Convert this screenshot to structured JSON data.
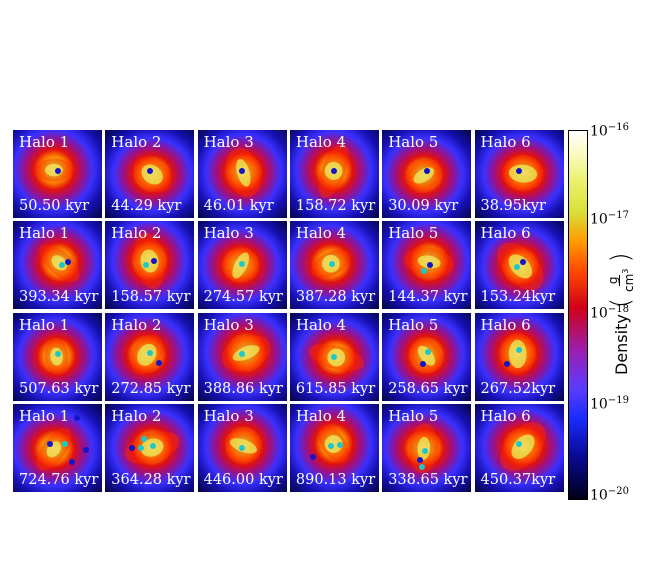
{
  "colorbar": {
    "label": "Density",
    "unit_num": "g",
    "unit_den": "cm",
    "unit_den_exp": "3",
    "ticks": [
      {
        "base": "10",
        "exp": "−16"
      },
      {
        "base": "10",
        "exp": "−17"
      },
      {
        "base": "10",
        "exp": "−18"
      },
      {
        "base": "10",
        "exp": "−19"
      },
      {
        "base": "10",
        "exp": "−20"
      }
    ]
  },
  "panels": [
    {
      "halo": "Halo 1",
      "time": "50.50 kyr",
      "dots": [
        [
          "blue",
          0.5,
          0.47
        ]
      ],
      "cores": 1
    },
    {
      "halo": "Halo 2",
      "time": "44.29 kyr",
      "dots": [
        [
          "blue",
          0.5,
          0.47
        ]
      ],
      "cores": 1
    },
    {
      "halo": "Halo 3",
      "time": "46.01 kyr",
      "dots": [
        [
          "blue",
          0.5,
          0.47
        ]
      ],
      "cores": 1
    },
    {
      "halo": "Halo 4",
      "time": "158.72 kyr",
      "dots": [
        [
          "blue",
          0.5,
          0.47
        ]
      ],
      "cores": 1
    },
    {
      "halo": "Halo 5",
      "time": "30.09 kyr",
      "dots": [
        [
          "blue",
          0.5,
          0.47
        ]
      ],
      "cores": 1
    },
    {
      "halo": "Halo 6",
      "time": "38.95kyr",
      "dots": [
        [
          "blue",
          0.5,
          0.47
        ]
      ],
      "cores": 1
    },
    {
      "halo": "Halo 1",
      "time": "393.34 kyr",
      "dots": [
        [
          "blue",
          0.62,
          0.46
        ],
        [
          "cyan",
          0.55,
          0.5
        ]
      ],
      "cores": 2
    },
    {
      "halo": "Halo 2",
      "time": "158.57 kyr",
      "dots": [
        [
          "blue",
          0.55,
          0.45
        ],
        [
          "cyan",
          0.46,
          0.5
        ]
      ],
      "cores": 2
    },
    {
      "halo": "Halo 3",
      "time": "274.57 kyr",
      "dots": [
        [
          "cyan",
          0.5,
          0.48
        ]
      ],
      "cores": 1
    },
    {
      "halo": "Halo 4",
      "time": "387.28 kyr",
      "dots": [
        [
          "cyan",
          0.47,
          0.48
        ]
      ],
      "cores": 1
    },
    {
      "halo": "Halo 5",
      "time": "144.37 kyr",
      "dots": [
        [
          "blue",
          0.54,
          0.5
        ],
        [
          "cyan",
          0.47,
          0.56
        ]
      ],
      "cores": 2
    },
    {
      "halo": "Halo 6",
      "time": "153.24kyr",
      "dots": [
        [
          "blue",
          0.55,
          0.46
        ],
        [
          "cyan",
          0.48,
          0.52
        ]
      ],
      "cores": 2
    },
    {
      "halo": "Halo 1",
      "time": "507.63 kyr",
      "dots": [
        [
          "cyan",
          0.5,
          0.47
        ]
      ],
      "cores": 1
    },
    {
      "halo": "Halo 2",
      "time": "272.85 kyr",
      "dots": [
        [
          "cyan",
          0.5,
          0.46
        ],
        [
          "blue",
          0.6,
          0.57
        ]
      ],
      "cores": 2
    },
    {
      "halo": "Halo 3",
      "time": "388.86 kyr",
      "dots": [
        [
          "cyan",
          0.5,
          0.47
        ]
      ],
      "cores": 1
    },
    {
      "halo": "Halo 4",
      "time": "615.85 kyr",
      "dots": [
        [
          "cyan",
          0.5,
          0.5
        ]
      ],
      "cores": 1
    },
    {
      "halo": "Halo 5",
      "time": "258.65 kyr",
      "dots": [
        [
          "cyan",
          0.52,
          0.45
        ],
        [
          "blue",
          0.46,
          0.58
        ]
      ],
      "cores": 2
    },
    {
      "halo": "Halo 6",
      "time": "267.52kyr",
      "dots": [
        [
          "cyan",
          0.5,
          0.42
        ],
        [
          "blue",
          0.37,
          0.58
        ]
      ],
      "cores": 2
    },
    {
      "halo": "Halo 1",
      "time": "724.76 kyr",
      "dots": [
        [
          "blue",
          0.72,
          0.16
        ],
        [
          "blue",
          0.42,
          0.46
        ],
        [
          "cyan",
          0.58,
          0.46
        ],
        [
          "blue",
          0.82,
          0.52
        ],
        [
          "blue",
          0.66,
          0.66
        ]
      ],
      "cores": 3
    },
    {
      "halo": "Halo 2",
      "time": "364.28 kyr",
      "dots": [
        [
          "blue",
          0.3,
          0.5
        ],
        [
          "cyan",
          0.4,
          0.5
        ],
        [
          "cyan",
          0.54,
          0.48
        ],
        [
          "cyan",
          0.44,
          0.4
        ]
      ],
      "cores": 2
    },
    {
      "halo": "Halo 3",
      "time": "446.00 kyr",
      "dots": [
        [
          "cyan",
          0.5,
          0.5
        ]
      ],
      "cores": 1
    },
    {
      "halo": "Halo 4",
      "time": "890.13 kyr",
      "dots": [
        [
          "blue",
          0.26,
          0.6
        ],
        [
          "cyan",
          0.46,
          0.48
        ],
        [
          "cyan",
          0.56,
          0.47
        ]
      ],
      "cores": 2
    },
    {
      "halo": "Halo 5",
      "time": "338.65 kyr",
      "dots": [
        [
          "cyan",
          0.48,
          0.53
        ],
        [
          "blue",
          0.42,
          0.64
        ],
        [
          "cyan",
          0.45,
          0.72
        ]
      ],
      "cores": 2
    },
    {
      "halo": "Halo 6",
      "time": "450.37kyr",
      "dots": [
        [
          "cyan",
          0.5,
          0.46
        ]
      ],
      "cores": 1
    }
  ]
}
